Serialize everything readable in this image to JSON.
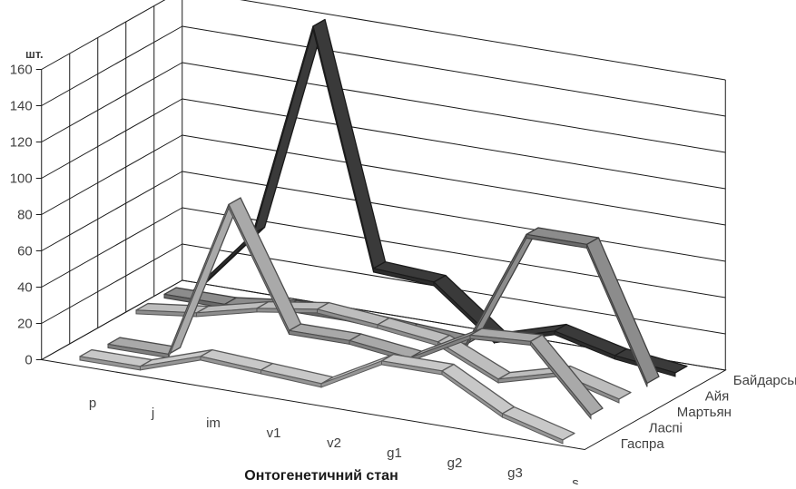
{
  "chart_data": {
    "type": "line",
    "variant": "3d-line",
    "title": "",
    "xlabel": "Онтогенетичний стан",
    "ylabel": "шт.",
    "ylim": [
      0,
      160
    ],
    "yticks": [
      0,
      20,
      40,
      60,
      80,
      100,
      120,
      140,
      160
    ],
    "grid": true,
    "categories": [
      "p",
      "j",
      "im",
      "v1",
      "v2",
      "g1",
      "g2",
      "g3",
      "s"
    ],
    "series": [
      {
        "name": "Гаспра",
        "color": "#c8c8c8",
        "values": [
          2,
          2,
          13,
          11,
          9,
          27,
          27,
          9,
          0
        ]
      },
      {
        "name": "Ласпі",
        "color": "#a9a9a9",
        "values": [
          0,
          0,
          88,
          24,
          24,
          20,
          38,
          40,
          5
        ]
      },
      {
        "name": "Мартьян",
        "color": "#bdbdbd",
        "values": [
          10,
          14,
          22,
          27,
          24,
          20,
          5,
          14,
          5
        ]
      },
      {
        "name": "Айя",
        "color": "#8c8c8c",
        "values": [
          10,
          10,
          14,
          14,
          12,
          10,
          76,
          76,
          5
        ]
      },
      {
        "name": "Байдарська долина",
        "color": "#3a3a3a",
        "values": [
          3,
          40,
          160,
          32,
          30,
          4,
          14,
          6,
          2
        ]
      }
    ]
  }
}
